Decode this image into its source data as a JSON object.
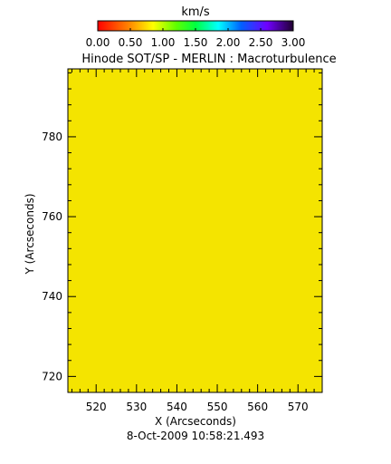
{
  "chart_data": {
    "type": "heatmap",
    "title": "Hinode SOT/SP - MERLIN : Macroturbulence",
    "xlabel": "X (Arcseconds)",
    "ylabel": "Y (Arcseconds)",
    "timestamp": "8-Oct-2009 10:58:21.493",
    "xlim": [
      513,
      576
    ],
    "ylim": [
      716,
      797
    ],
    "x_major_ticks": [
      520,
      530,
      540,
      550,
      560,
      570
    ],
    "x_tick_labels": [
      "520",
      "530",
      "540",
      "550",
      "560",
      "570"
    ],
    "y_major_ticks": [
      720,
      740,
      760,
      780
    ],
    "y_tick_labels": [
      "720",
      "740",
      "760",
      "780"
    ],
    "x_minor_step": 2,
    "y_minor_step": 4,
    "field_value": 1.0,
    "field_color": "#f4e400",
    "colorbar": {
      "unit": "km/s",
      "range": [
        0,
        3
      ],
      "tick_values": [
        0,
        0.5,
        1,
        1.5,
        2,
        2.5,
        3
      ],
      "tick_labels": [
        "0.00",
        "0.50",
        "1.00",
        "1.50",
        "2.00",
        "2.50",
        "3.00"
      ],
      "stops": [
        {
          "value": 0.0,
          "color": "#ff0000"
        },
        {
          "value": 0.5,
          "color": "#ff8c00"
        },
        {
          "value": 0.85,
          "color": "#ffff00"
        },
        {
          "value": 1.2,
          "color": "#60ff00"
        },
        {
          "value": 1.5,
          "color": "#00ff40"
        },
        {
          "value": 1.85,
          "color": "#00ffff"
        },
        {
          "value": 2.2,
          "color": "#0060ff"
        },
        {
          "value": 2.6,
          "color": "#7000ff"
        },
        {
          "value": 3.0,
          "color": "#200030"
        }
      ]
    }
  }
}
